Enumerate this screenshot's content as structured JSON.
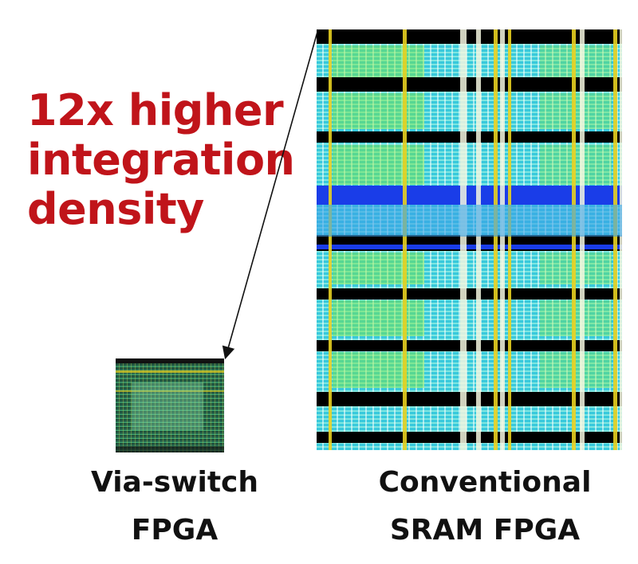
{
  "headline": {
    "lines": [
      "12x higher",
      "integration",
      "density"
    ],
    "color": "#c0141a"
  },
  "left_chip": {
    "label_lines": [
      "Via-switch",
      "FPGA"
    ]
  },
  "right_chip": {
    "label_lines": [
      "Conventional",
      "SRAM FPGA"
    ]
  },
  "colors": {
    "layout_cyan": "#38c9dc",
    "layout_blue": "#1a3de8",
    "layout_yellow": "#e8d020",
    "layout_green": "#7ee83a",
    "band_black": "#000000",
    "small_chip_green": "#2a6b50"
  }
}
